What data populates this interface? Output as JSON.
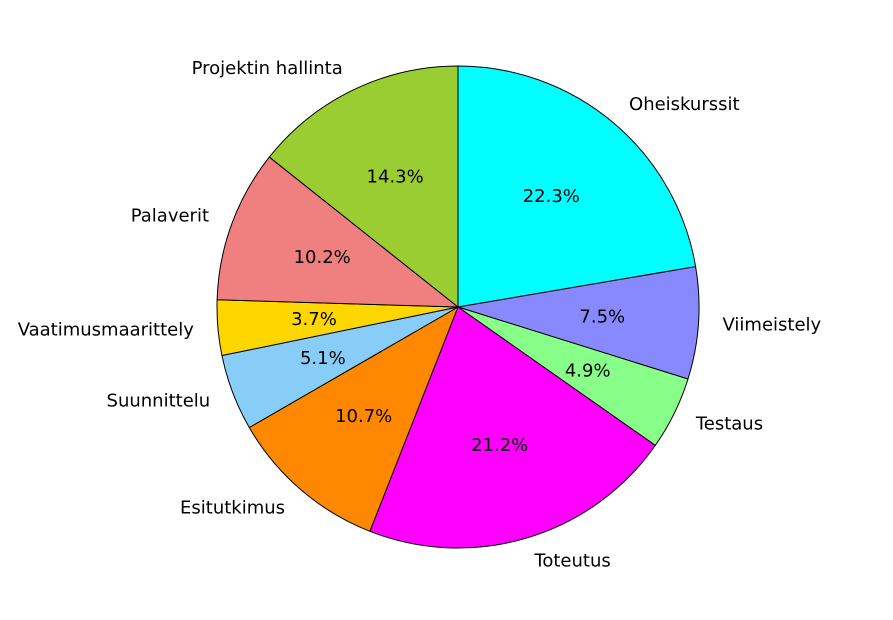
{
  "chart_data": {
    "type": "pie",
    "start": "top, clockwise",
    "slices": [
      {
        "label": "Oheiskurssit",
        "pct_label": "22.3%",
        "value": 22.3,
        "color": "#00ffff"
      },
      {
        "label": "Viimeistely",
        "pct_label": "7.5%",
        "value": 7.5,
        "color": "#8888ff"
      },
      {
        "label": "Testaus",
        "pct_label": "4.9%",
        "value": 4.9,
        "color": "#88ff88"
      },
      {
        "label": "Toteutus",
        "pct_label": "21.2%",
        "value": 21.2,
        "color": "#ff00ff"
      },
      {
        "label": "Esitutkimus",
        "pct_label": "10.7%",
        "value": 10.7,
        "color": "#ff8800"
      },
      {
        "label": "Suunnittelu",
        "pct_label": "5.1%",
        "value": 5.1,
        "color": "#88ccf8"
      },
      {
        "label": "Vaatimusmaarittely",
        "pct_label": "3.7%",
        "value": 3.7,
        "color": "#ffd700"
      },
      {
        "label": "Palaverit",
        "pct_label": "10.2%",
        "value": 10.2,
        "color": "#f08080"
      },
      {
        "label": "Projektin hallinta",
        "pct_label": "14.3%",
        "value": 14.3,
        "color": "#9acd32"
      }
    ]
  }
}
